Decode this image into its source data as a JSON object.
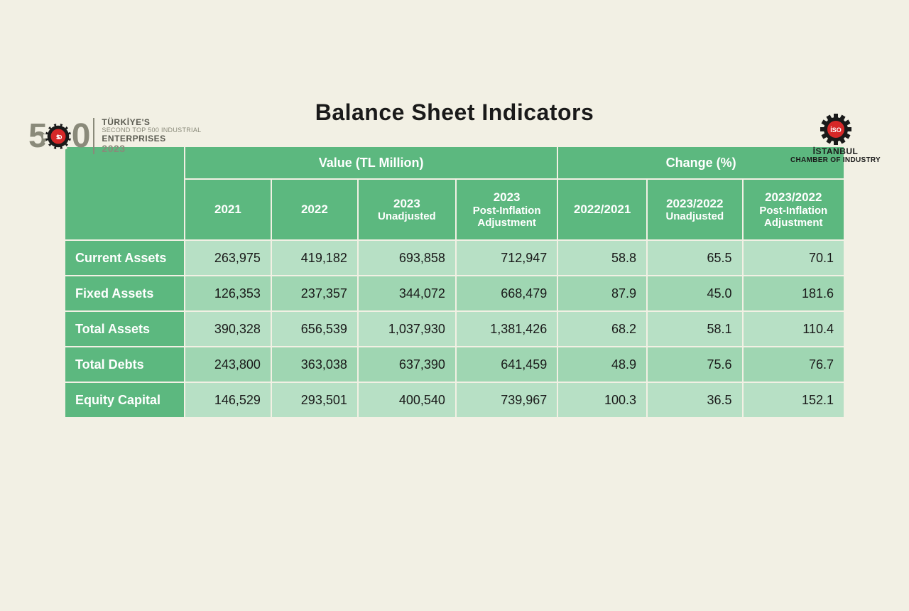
{
  "header": {
    "logo_left": {
      "big_number_prefix": "5",
      "big_number_suffix": "0",
      "line1": "TÜRKİYE'S",
      "line2": "SECOND TOP 500 INDUSTRIAL",
      "line3": "ENTERPRISES",
      "line4": "2023"
    },
    "logo_right": {
      "org_line1": "İSTANBUL",
      "org_line2": "CHAMBER OF INDUSTRY",
      "badge_text": "İSO"
    }
  },
  "title": "Balance Sheet Indicators",
  "table": {
    "type": "table",
    "header_group_1": "Value (TL Million)",
    "header_group_2": "Change (%)",
    "columns": {
      "y2021": "2021",
      "y2022": "2022",
      "y2023u": "2023",
      "y2023u_sub": "Unadjusted",
      "y2023p": "2023",
      "y2023p_sub": "Post-Inflation Adjustment",
      "c1": "2022/2021",
      "c2": "2023/2022",
      "c2_sub": "Unadjusted",
      "c3": "2023/2022",
      "c3_sub": "Post-Inflation Adjustment"
    },
    "rows": [
      {
        "label": "Current Assets",
        "v": [
          "263,975",
          "419,182",
          "693,858",
          "712,947"
        ],
        "c": [
          "58.8",
          "65.5",
          "70.1"
        ]
      },
      {
        "label": "Fixed Assets",
        "v": [
          "126,353",
          "237,357",
          "344,072",
          "668,479"
        ],
        "c": [
          "87.9",
          "45.0",
          "181.6"
        ]
      },
      {
        "label": "Total Assets",
        "v": [
          "390,328",
          "656,539",
          "1,037,930",
          "1,381,426"
        ],
        "c": [
          "68.2",
          "58.1",
          "110.4"
        ]
      },
      {
        "label": "Total Debts",
        "v": [
          "243,800",
          "363,038",
          "637,390",
          "641,459"
        ],
        "c": [
          "48.9",
          "75.6",
          "76.7"
        ]
      },
      {
        "label": "Equity Capital",
        "v": [
          "146,529",
          "293,501",
          "400,540",
          "739,967"
        ],
        "c": [
          "100.3",
          "36.5",
          "152.1"
        ]
      }
    ],
    "colors": {
      "header_bg": "#5cb87f",
      "header_text": "#ffffff",
      "row_odd_bg": "#b7e0c5",
      "row_even_bg": "#9fd6b2",
      "page_bg": "#f2f0e4",
      "text": "#1a1a1a"
    },
    "font_sizes": {
      "title": 32,
      "header": 18,
      "cell": 18
    }
  }
}
